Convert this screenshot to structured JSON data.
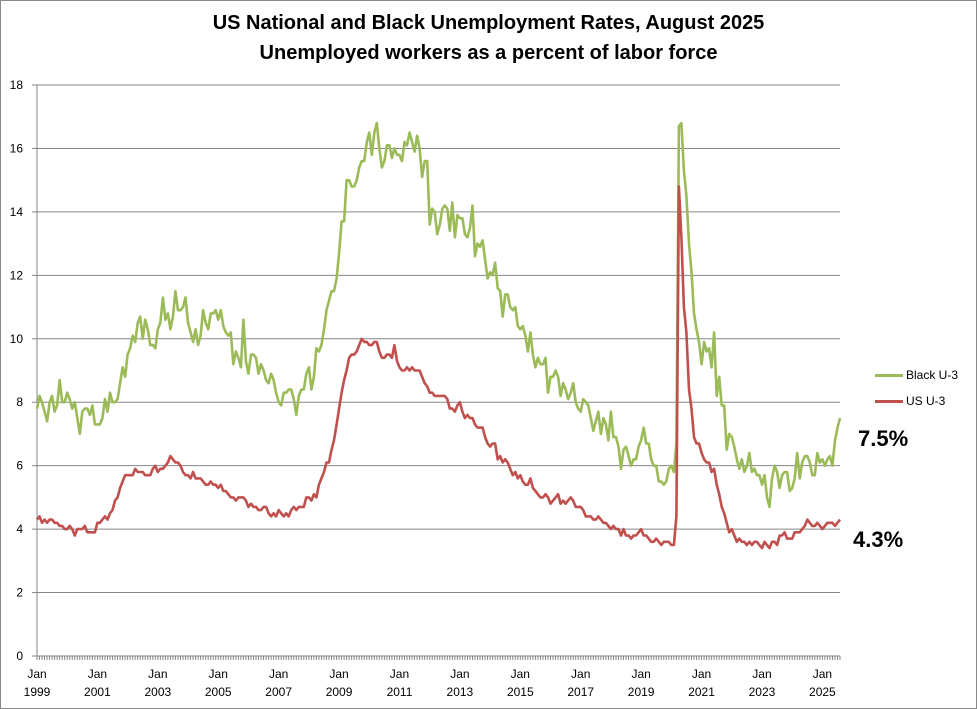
{
  "chart_data": {
    "type": "line",
    "title": "US National and Black Unemployment Rates, August 2025",
    "subtitle": "Unemployed workers as a percent of labor force",
    "xlabel": "",
    "ylabel": "",
    "ylim": [
      0,
      18
    ],
    "yticks": [
      "0",
      "2",
      "4",
      "6",
      "8",
      "10",
      "12",
      "14",
      "16",
      "18"
    ],
    "xtick_labels": [
      [
        "Jan",
        "1999"
      ],
      [
        "Jan",
        "2001"
      ],
      [
        "Jan",
        "2003"
      ],
      [
        "Jan",
        "2005"
      ],
      [
        "Jan",
        "2007"
      ],
      [
        "Jan",
        "2009"
      ],
      [
        "Jan",
        "2011"
      ],
      [
        "Jan",
        "2013"
      ],
      [
        "Jan",
        "2015"
      ],
      [
        "Jan",
        "2017"
      ],
      [
        "Jan",
        "2019"
      ],
      [
        "Jan",
        "2021"
      ],
      [
        "Jan",
        "2023"
      ],
      [
        "Jan",
        "2025"
      ]
    ],
    "x_start": "1999-01",
    "x_end": "2025-08",
    "frequency": "monthly",
    "grid": "horizontal",
    "legend_placement": "right",
    "series": [
      {
        "name": "Black U-3",
        "color": "#9BBB59",
        "end_label": "7.5%",
        "values": [
          7.8,
          8.2,
          8.0,
          7.7,
          7.4,
          8.0,
          8.2,
          7.7,
          7.9,
          8.7,
          8.0,
          8.0,
          8.3,
          8.1,
          7.8,
          8.0,
          7.5,
          7.0,
          7.7,
          7.8,
          7.8,
          7.6,
          7.9,
          7.3,
          7.3,
          7.3,
          7.5,
          8.1,
          7.7,
          8.3,
          8.0,
          8.0,
          8.1,
          8.6,
          9.1,
          8.8,
          9.5,
          9.7,
          10.1,
          9.9,
          10.5,
          10.7,
          10.0,
          10.6,
          10.3,
          9.8,
          9.8,
          9.7,
          10.3,
          10.5,
          11.3,
          10.6,
          10.8,
          10.3,
          10.7,
          11.5,
          10.9,
          10.9,
          11.0,
          11.3,
          10.5,
          10.2,
          9.9,
          10.3,
          9.8,
          10.1,
          10.9,
          10.5,
          10.3,
          10.8,
          10.8,
          10.9,
          10.6,
          10.9,
          10.4,
          10.2,
          10.1,
          10.2,
          9.2,
          9.6,
          9.4,
          9.1,
          10.6,
          9.3,
          8.9,
          9.5,
          9.5,
          9.4,
          8.9,
          9.2,
          9.0,
          8.7,
          8.6,
          8.9,
          8.7,
          8.3,
          8.0,
          7.9,
          8.3,
          8.3,
          8.4,
          8.4,
          8.1,
          7.6,
          8.2,
          8.4,
          8.4,
          8.9,
          9.1,
          8.4,
          8.8,
          9.7,
          9.6,
          9.8,
          10.3,
          10.9,
          11.2,
          11.5,
          11.5,
          11.9,
          12.7,
          13.7,
          13.7,
          15.0,
          15.0,
          14.8,
          14.8,
          15.0,
          15.4,
          15.6,
          15.6,
          16.2,
          16.5,
          15.8,
          16.5,
          16.8,
          16.0,
          15.4,
          15.6,
          16.1,
          16.1,
          15.7,
          16.0,
          15.8,
          15.8,
          15.6,
          16.2,
          16.1,
          16.5,
          16.2,
          15.9,
          16.4,
          16.0,
          15.1,
          15.6,
          15.6,
          13.6,
          14.1,
          14.0,
          13.3,
          13.6,
          14.1,
          14.2,
          14.1,
          13.4,
          14.3,
          13.2,
          13.9,
          13.8,
          13.8,
          13.3,
          13.2,
          13.5,
          14.2,
          12.6,
          13.0,
          12.9,
          13.1,
          12.5,
          11.9,
          12.1,
          12.0,
          12.4,
          11.6,
          11.5,
          10.7,
          11.4,
          11.4,
          11.0,
          10.9,
          11.0,
          10.4,
          10.3,
          10.4,
          10.1,
          9.6,
          10.2,
          9.5,
          9.1,
          9.4,
          9.2,
          9.2,
          9.4,
          8.3,
          8.8,
          8.8,
          9.0,
          8.8,
          8.2,
          8.6,
          8.4,
          8.1,
          8.3,
          8.6,
          8.0,
          7.8,
          7.7,
          8.1,
          8.0,
          7.9,
          7.5,
          7.1,
          7.4,
          7.7,
          7.0,
          7.5,
          7.3,
          6.8,
          7.7,
          6.9,
          6.9,
          6.6,
          5.9,
          6.5,
          6.6,
          6.3,
          6.0,
          6.2,
          6.2,
          6.6,
          6.8,
          7.2,
          6.7,
          6.7,
          6.2,
          6.0,
          6.0,
          5.5,
          5.5,
          5.4,
          5.5,
          5.9,
          6.0,
          5.8,
          6.7,
          16.7,
          16.8,
          15.3,
          14.5,
          13.0,
          12.1,
          10.8,
          10.3,
          9.9,
          9.2,
          9.9,
          9.6,
          9.7,
          9.1,
          10.2,
          8.2,
          8.8,
          7.9,
          7.9,
          6.5,
          7.0,
          6.9,
          6.6,
          6.2,
          5.9,
          6.2,
          5.8,
          6.0,
          6.4,
          5.8,
          5.9,
          5.7,
          5.7,
          5.4,
          5.7,
          5.0,
          4.7,
          5.6,
          6.0,
          5.8,
          5.3,
          5.7,
          5.8,
          5.8,
          5.2,
          5.3,
          5.6,
          6.4,
          5.6,
          6.1,
          6.3,
          6.3,
          6.1,
          5.7,
          5.7,
          6.4,
          6.1,
          6.2,
          6.0,
          6.2,
          6.3,
          6.0,
          6.8,
          7.2,
          7.5
        ]
      },
      {
        "name": "US U-3",
        "color": "#C0504D",
        "end_label": "4.3%",
        "values": [
          4.3,
          4.4,
          4.2,
          4.3,
          4.2,
          4.3,
          4.3,
          4.2,
          4.2,
          4.1,
          4.1,
          4.0,
          4.0,
          4.1,
          4.0,
          3.8,
          4.0,
          4.0,
          4.0,
          4.1,
          3.9,
          3.9,
          3.9,
          3.9,
          4.2,
          4.2,
          4.3,
          4.4,
          4.3,
          4.5,
          4.6,
          4.9,
          5.0,
          5.3,
          5.5,
          5.7,
          5.7,
          5.7,
          5.7,
          5.9,
          5.8,
          5.8,
          5.8,
          5.7,
          5.7,
          5.7,
          5.9,
          6.0,
          5.8,
          5.9,
          5.9,
          6.0,
          6.1,
          6.3,
          6.2,
          6.1,
          6.1,
          6.0,
          5.8,
          5.7,
          5.7,
          5.6,
          5.8,
          5.6,
          5.6,
          5.6,
          5.5,
          5.4,
          5.4,
          5.5,
          5.4,
          5.4,
          5.3,
          5.4,
          5.2,
          5.2,
          5.1,
          5.0,
          5.0,
          4.9,
          5.0,
          5.0,
          5.0,
          4.9,
          4.7,
          4.8,
          4.7,
          4.7,
          4.6,
          4.6,
          4.7,
          4.7,
          4.5,
          4.4,
          4.5,
          4.4,
          4.6,
          4.5,
          4.4,
          4.5,
          4.4,
          4.6,
          4.7,
          4.6,
          4.7,
          4.7,
          4.7,
          5.0,
          5.0,
          4.9,
          5.1,
          5.0,
          5.4,
          5.6,
          5.8,
          6.1,
          6.1,
          6.5,
          6.8,
          7.3,
          7.8,
          8.3,
          8.7,
          9.0,
          9.4,
          9.5,
          9.5,
          9.6,
          9.8,
          10.0,
          9.9,
          9.9,
          9.8,
          9.8,
          9.9,
          9.9,
          9.6,
          9.4,
          9.4,
          9.5,
          9.5,
          9.4,
          9.8,
          9.3,
          9.1,
          9.0,
          9.0,
          9.1,
          9.0,
          9.1,
          9.0,
          9.0,
          9.0,
          8.8,
          8.6,
          8.5,
          8.3,
          8.3,
          8.2,
          8.2,
          8.2,
          8.2,
          8.2,
          8.1,
          7.8,
          7.8,
          7.7,
          7.9,
          8.0,
          7.7,
          7.5,
          7.6,
          7.5,
          7.5,
          7.3,
          7.2,
          7.2,
          7.2,
          6.9,
          6.7,
          6.6,
          6.7,
          6.7,
          6.2,
          6.3,
          6.1,
          6.2,
          6.1,
          5.9,
          5.7,
          5.8,
          5.6,
          5.7,
          5.5,
          5.4,
          5.4,
          5.6,
          5.3,
          5.2,
          5.1,
          5.0,
          5.0,
          5.1,
          5.0,
          4.8,
          4.9,
          5.0,
          5.1,
          4.8,
          4.9,
          4.8,
          4.9,
          5.0,
          4.9,
          4.7,
          4.7,
          4.7,
          4.6,
          4.4,
          4.4,
          4.4,
          4.3,
          4.3,
          4.4,
          4.3,
          4.2,
          4.2,
          4.1,
          4.0,
          4.1,
          4.0,
          4.0,
          3.8,
          4.0,
          3.8,
          3.8,
          3.7,
          3.8,
          3.8,
          3.9,
          4.0,
          3.8,
          3.8,
          3.7,
          3.6,
          3.6,
          3.7,
          3.6,
          3.5,
          3.6,
          3.6,
          3.6,
          3.5,
          3.5,
          4.4,
          14.8,
          13.2,
          11.0,
          10.2,
          8.4,
          7.8,
          6.9,
          6.7,
          6.7,
          6.4,
          6.2,
          6.1,
          6.1,
          5.8,
          5.9,
          5.4,
          5.1,
          4.7,
          4.5,
          4.2,
          3.9,
          4.0,
          3.8,
          3.6,
          3.7,
          3.6,
          3.6,
          3.5,
          3.6,
          3.5,
          3.6,
          3.6,
          3.5,
          3.4,
          3.6,
          3.5,
          3.4,
          3.6,
          3.6,
          3.5,
          3.8,
          3.8,
          3.9,
          3.7,
          3.7,
          3.7,
          3.9,
          3.9,
          3.9,
          4.0,
          4.1,
          4.3,
          4.2,
          4.1,
          4.1,
          4.2,
          4.1,
          4.0,
          4.1,
          4.2,
          4.2,
          4.2,
          4.1,
          4.2,
          4.3
        ]
      }
    ]
  }
}
